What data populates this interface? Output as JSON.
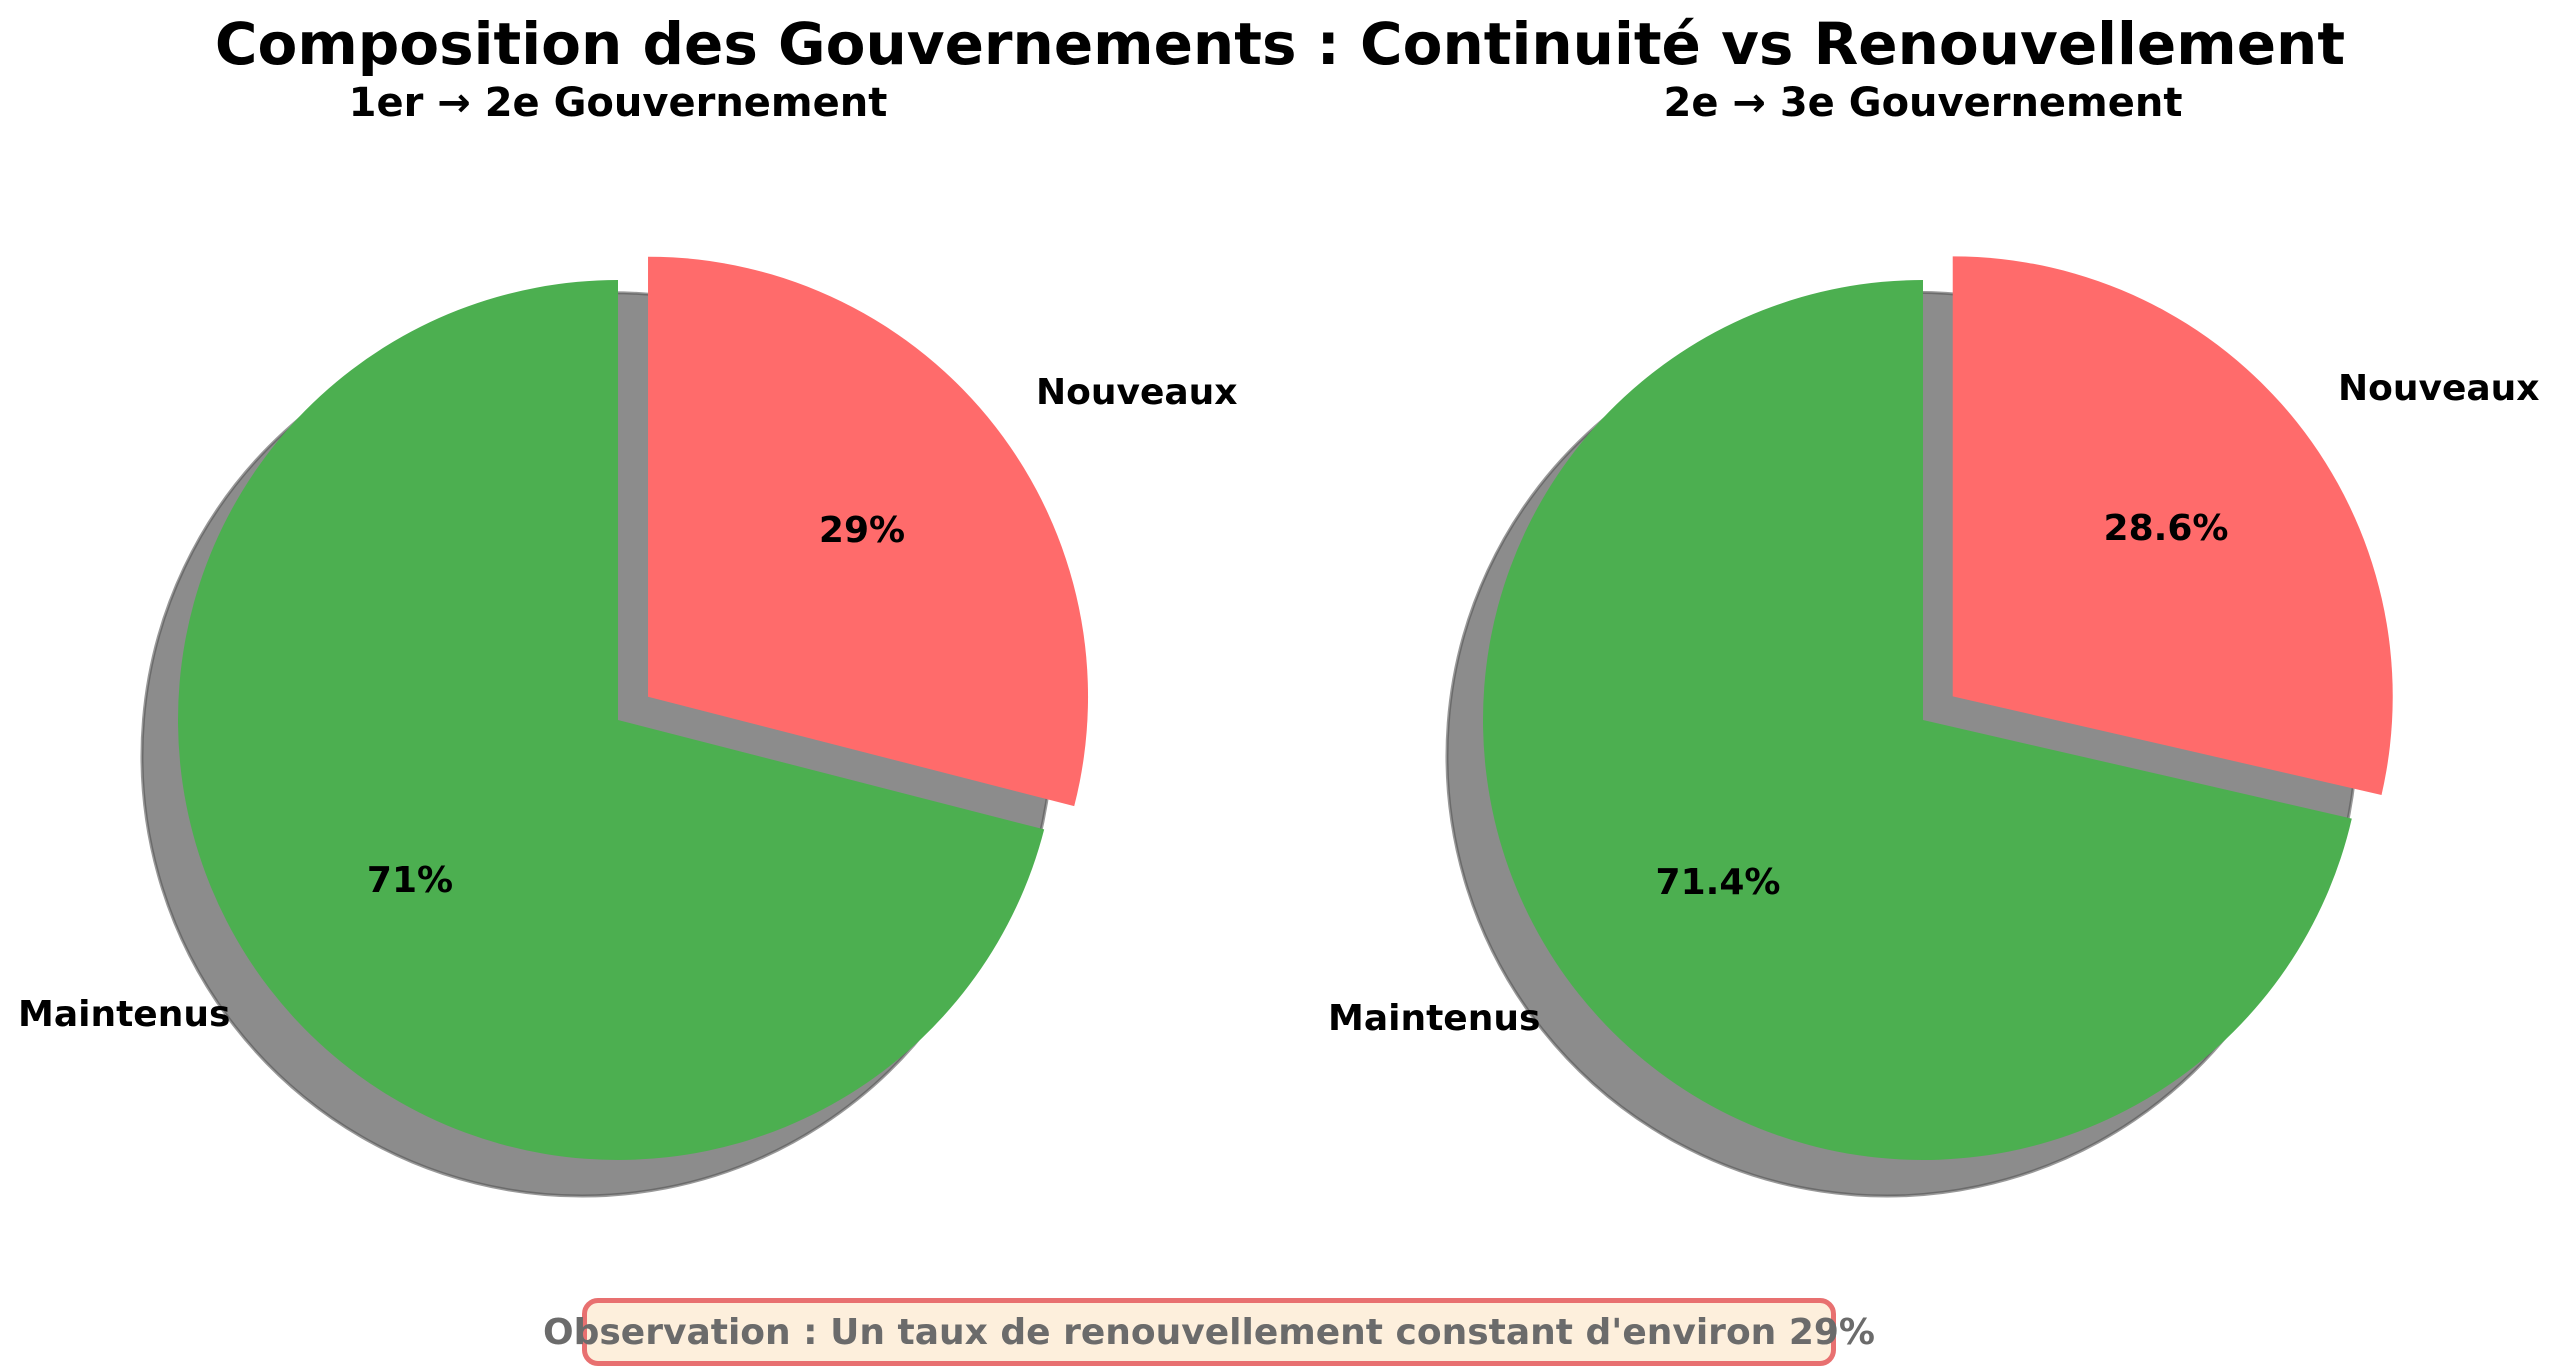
{
  "title": "Composition des Gouvernements : Continuité vs Renouvellement",
  "note": "Observation : Un taux de renouvellement constant d'environ 29%",
  "colors": {
    "maintenus": "#4caf50",
    "nouveaux": "#ff6b6b",
    "shadow": "#7f7f7f",
    "note_border": "#e87070",
    "note_background": "#fdefdc"
  },
  "chart_data": [
    {
      "type": "pie",
      "title": "1er → 2e Gouvernement",
      "slices": [
        {
          "label": "Nouveaux",
          "value": 29,
          "pct_label": "29%",
          "color": "#ff6b6b",
          "exploded": true
        },
        {
          "label": "Maintenus",
          "value": 71,
          "pct_label": "71%",
          "color": "#4caf50",
          "exploded": false
        }
      ],
      "start_angle_deg": 90,
      "direction": "clockwise",
      "shadow": true
    },
    {
      "type": "pie",
      "title": "2e → 3e Gouvernement",
      "slices": [
        {
          "label": "Nouveaux",
          "value": 28.6,
          "pct_label": "28.6%",
          "color": "#ff6b6b",
          "exploded": true
        },
        {
          "label": "Maintenus",
          "value": 71.4,
          "pct_label": "71.4%",
          "color": "#4caf50",
          "exploded": false
        }
      ],
      "start_angle_deg": 90,
      "direction": "clockwise",
      "shadow": true
    }
  ]
}
